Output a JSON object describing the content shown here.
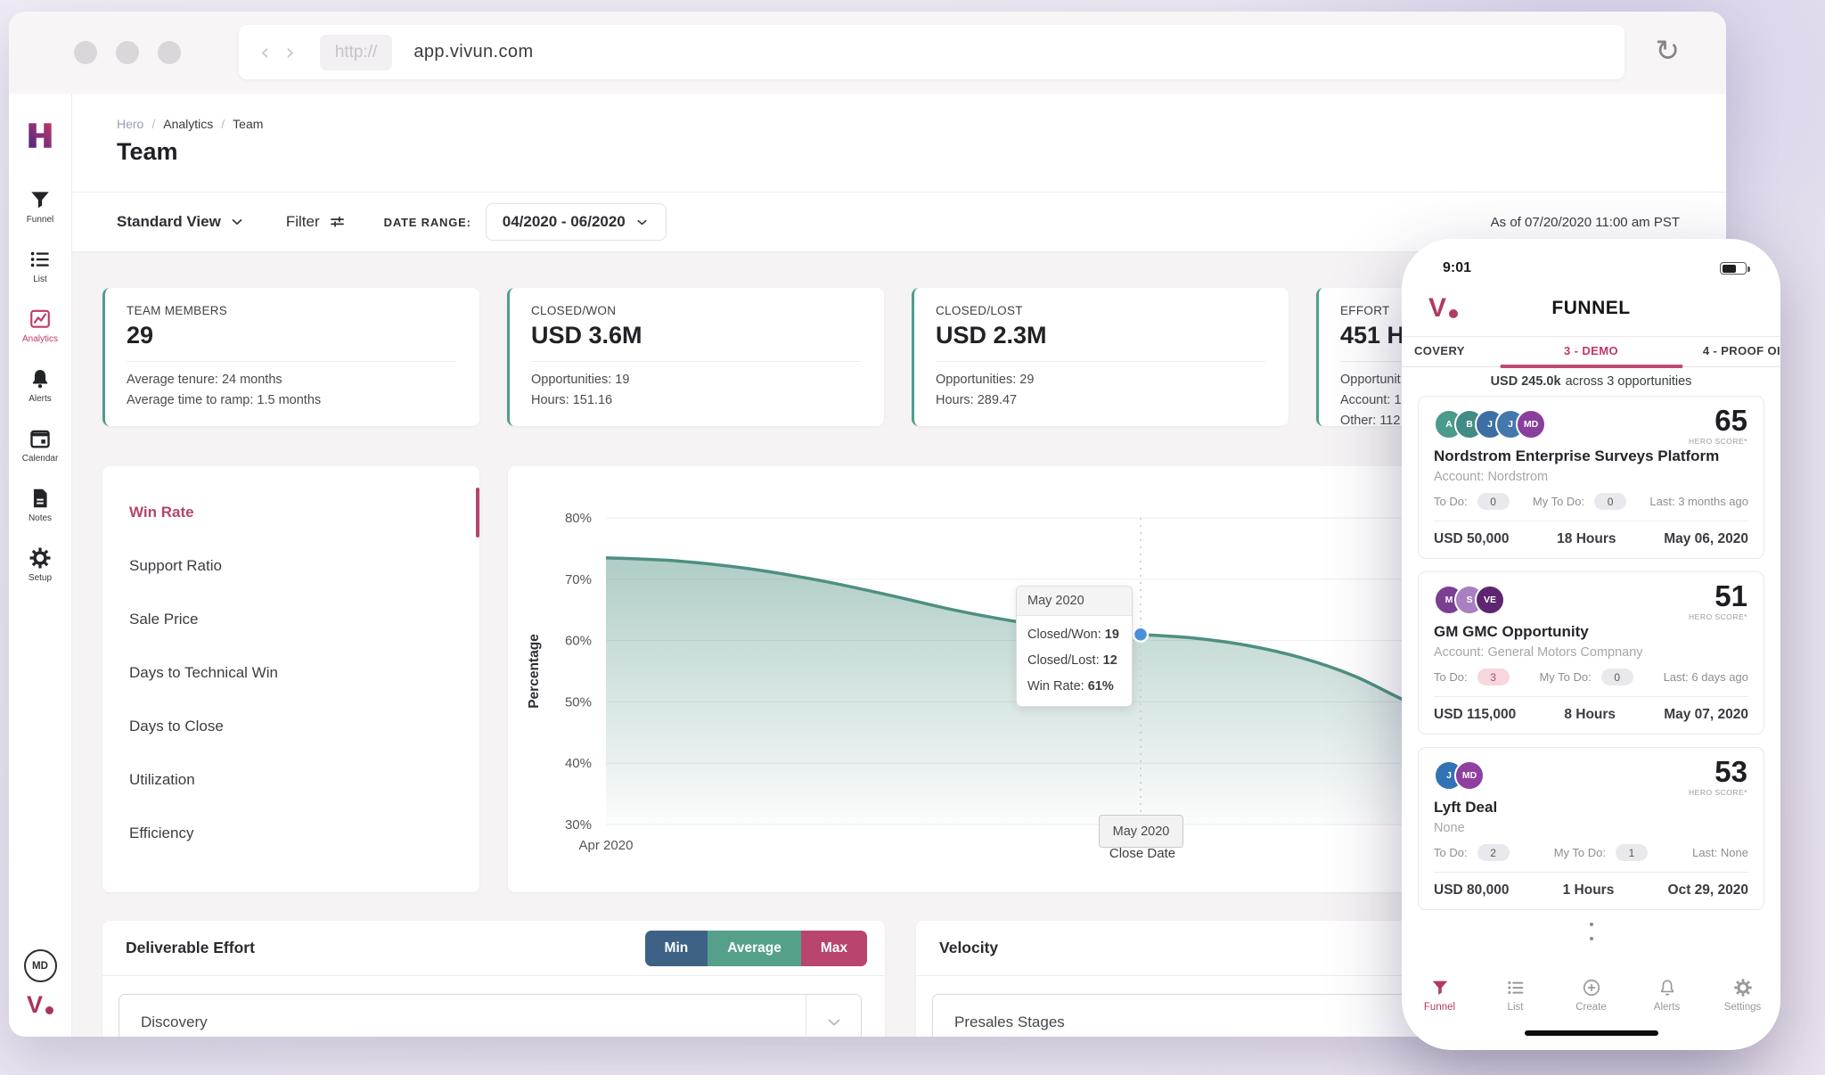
{
  "browser": {
    "protocol": "http://",
    "url": "app.vivun.com"
  },
  "sidebar": {
    "items": [
      {
        "id": "funnel",
        "label": "Funnel",
        "icon": "funnel",
        "active": false
      },
      {
        "id": "list",
        "label": "List",
        "icon": "list",
        "active": false
      },
      {
        "id": "analytics",
        "label": "Analytics",
        "icon": "analytics",
        "active": true
      },
      {
        "id": "alerts",
        "label": "Alerts",
        "icon": "bell",
        "active": false
      },
      {
        "id": "calendar",
        "label": "Calendar",
        "icon": "calendar",
        "active": false
      },
      {
        "id": "notes",
        "label": "Notes",
        "icon": "notes",
        "active": false
      },
      {
        "id": "setup",
        "label": "Setup",
        "icon": "gear",
        "active": false
      }
    ],
    "avatar_initials": "MD",
    "brand_v": "V"
  },
  "breadcrumb": {
    "items": [
      "Hero",
      "Analytics",
      "Team"
    ],
    "separator": "/"
  },
  "page_title": "Team",
  "toolbar": {
    "view": "Standard View",
    "filter": "Filter",
    "date_range_label": "DATE RANGE:",
    "date_range": "04/2020 - 06/2020",
    "as_of": "As of 07/20/2020 11:00 am PST"
  },
  "kpis": [
    {
      "label": "TEAM MEMBERS",
      "value": "29",
      "details": [
        "Average tenure: 24 months",
        "Average time to ramp: 1.5 months"
      ]
    },
    {
      "label": "CLOSED/WON",
      "value": "USD 3.6M",
      "details": [
        "Opportunities: 19",
        "Hours: 151.16"
      ]
    },
    {
      "label": "CLOSED/LOST",
      "value": "USD 2.3M",
      "details": [
        "Opportunities: 29",
        "Hours: 289.47"
      ]
    },
    {
      "label": "EFFORT",
      "value": "451 H",
      "details": [
        "Opportunit",
        "Account: 1",
        "Other: 112"
      ]
    }
  ],
  "metrics_menu": {
    "items": [
      "Win Rate",
      "Support Ratio",
      "Sale Price",
      "Days to Technical Win",
      "Days to Close",
      "Utilization",
      "Efficiency"
    ],
    "active_index": 0
  },
  "chart_data": {
    "type": "area",
    "series_name": "Win Rate",
    "ylabel": "Percentage",
    "xlabel": "Close Date",
    "ylim": [
      30,
      80
    ],
    "y_ticks": [
      80,
      70,
      60,
      50,
      40,
      30
    ],
    "x_months": 2,
    "x_ticks": [
      {
        "label": "Apr 2020",
        "month": 0
      },
      {
        "label": "May 2020",
        "month": 1
      }
    ],
    "line_color": "#4e8f82",
    "points": [
      [
        0,
        73.5
      ],
      [
        0.13,
        73.0
      ],
      [
        0.26,
        71.8
      ],
      [
        0.4,
        69.8
      ],
      [
        0.53,
        67.4
      ],
      [
        0.65,
        65.0
      ],
      [
        0.76,
        63.2
      ],
      [
        0.87,
        61.8
      ],
      [
        1.0,
        61.0
      ],
      [
        1.1,
        60.4
      ],
      [
        1.2,
        59.2
      ],
      [
        1.3,
        57.2
      ],
      [
        1.4,
        54.2
      ],
      [
        1.5,
        50.0
      ],
      [
        1.62,
        45.8
      ],
      [
        1.75,
        42.8
      ],
      [
        1.88,
        41.0
      ],
      [
        2.0,
        40.2
      ]
    ],
    "highlight": {
      "month": 1,
      "value": 61,
      "label": "May 2020"
    }
  },
  "chart_tooltip": {
    "title": "May 2020",
    "rows": [
      {
        "label": "Closed/Won:",
        "value": "19"
      },
      {
        "label": "Closed/Lost:",
        "value": "12"
      },
      {
        "label": "Win Rate:",
        "value": "61%"
      }
    ]
  },
  "deliverable_effort": {
    "title": "Deliverable Effort",
    "buttons": [
      {
        "label": "Min",
        "color": "#3e6286"
      },
      {
        "label": "Average",
        "color": "#55a08b"
      },
      {
        "label": "Max",
        "color": "#b8446f"
      }
    ],
    "dropdown": "Discovery"
  },
  "velocity": {
    "title": "Velocity",
    "dropdown": "Presales Stages"
  },
  "phone": {
    "time": "9:01",
    "title": "FUNNEL",
    "brand_v": "V",
    "tabs": [
      {
        "label": "COVERY",
        "active": false
      },
      {
        "label": "3 - DEMO",
        "active": true
      },
      {
        "label": "4 - PROOF OI",
        "active": false
      }
    ],
    "summary_strong": "USD 245.0k",
    "summary_rest": "across 3 opportunities",
    "score_label": "HERO SCORE*",
    "cards": [
      {
        "avatars": [
          {
            "t": "A",
            "c": "#4a9b8c"
          },
          {
            "t": "B",
            "c": "#418d85"
          },
          {
            "t": "J",
            "c": "#3d6fa5"
          },
          {
            "t": "J",
            "c": "#4478ad"
          },
          {
            "t": "MD",
            "c": "#883f9d"
          }
        ],
        "score": "65",
        "title": "Nordstrom Enterprise Surveys Platform",
        "subtitle": "Account: Nordstrom",
        "todo_label": "To Do:",
        "todo": "0",
        "todo_pink": false,
        "mytodo_label": "My To Do:",
        "mytodo": "0",
        "last": "Last: 3 months ago",
        "amount": "USD 50,000",
        "hours": "18 Hours",
        "date": "May 06, 2020"
      },
      {
        "avatars": [
          {
            "t": "M",
            "c": "#7b3f92"
          },
          {
            "t": "S",
            "c": "#a87fc0"
          },
          {
            "t": "VE",
            "c": "#5e2570"
          }
        ],
        "score": "51",
        "title": "GM GMC Opportunity",
        "subtitle": "Account: General Motors Compnany",
        "todo_label": "To Do:",
        "todo": "3",
        "todo_pink": true,
        "mytodo_label": "My To Do:",
        "mytodo": "0",
        "last": "Last: 6 days ago",
        "amount": "USD 115,000",
        "hours": "8 Hours",
        "date": "May 07, 2020"
      },
      {
        "avatars": [
          {
            "t": "J",
            "c": "#3173b4"
          },
          {
            "t": "MD",
            "c": "#8f3f9f"
          }
        ],
        "score": "53",
        "title": "Lyft Deal",
        "subtitle": "None",
        "todo_label": "To Do:",
        "todo": "2",
        "todo_pink": false,
        "mytodo_label": "My To Do:",
        "mytodo": "1",
        "last": "Last: None",
        "amount": "USD 80,000",
        "hours": "1 Hours",
        "date": "Oct 29, 2020"
      }
    ],
    "nav": [
      {
        "label": "Funnel",
        "icon": "funnel",
        "active": true
      },
      {
        "label": "List",
        "icon": "list",
        "active": false
      },
      {
        "label": "Create",
        "icon": "create",
        "active": false
      },
      {
        "label": "Alerts",
        "icon": "bell-outline",
        "active": false
      },
      {
        "label": "Settings",
        "icon": "gear",
        "active": false
      }
    ]
  }
}
